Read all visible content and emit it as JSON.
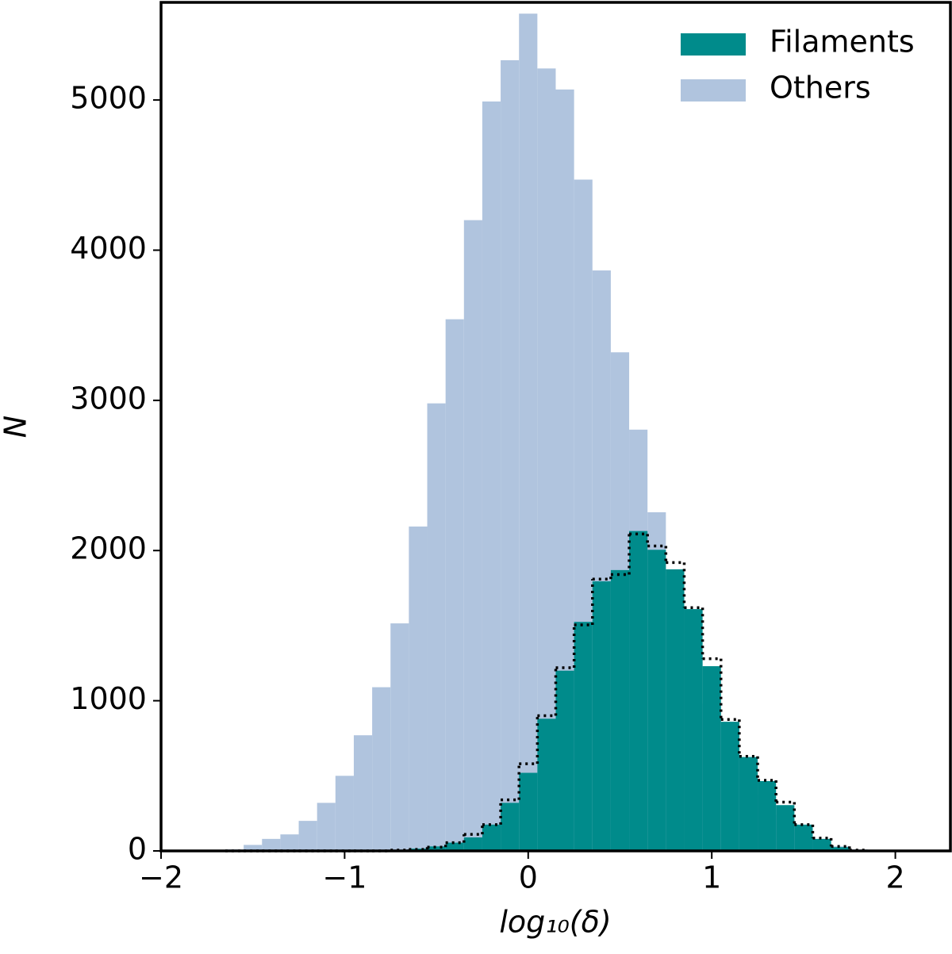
{
  "chart_data": {
    "type": "histogram",
    "xlabel": "log₁₀(δ)",
    "ylabel": "N",
    "bins": [
      -1.65,
      -1.55,
      -1.45,
      -1.35,
      -1.25,
      -1.15,
      -1.05,
      -0.95,
      -0.85,
      -0.75,
      -0.65,
      -0.55,
      -0.45,
      -0.35,
      -0.25,
      -0.15,
      -0.05,
      0.05,
      0.15,
      0.25,
      0.35,
      0.45,
      0.55,
      0.65,
      0.75,
      0.85,
      0.95,
      1.05,
      1.15,
      1.25,
      1.35,
      1.45,
      1.55,
      1.65,
      1.75,
      1.85
    ],
    "series": [
      {
        "name": "Others",
        "color": "#b0c4de",
        "style": "bar",
        "values": [
          10,
          40,
          80,
          110,
          200,
          320,
          500,
          770,
          1090,
          1515,
          2160,
          2980,
          3540,
          4200,
          4990,
          5265,
          5575,
          5210,
          5070,
          4470,
          3865,
          3320,
          2805,
          2255,
          1830,
          1335,
          980,
          850,
          520,
          375,
          240,
          125,
          55,
          30,
          10
        ]
      },
      {
        "name": "Filaments",
        "color": "#008b8b",
        "style": "bar",
        "values": [
          0,
          0,
          0,
          0,
          0,
          0,
          0,
          0,
          0,
          5,
          15,
          30,
          55,
          90,
          175,
          320,
          520,
          880,
          1200,
          1525,
          1795,
          1870,
          2130,
          2005,
          1875,
          1610,
          1230,
          860,
          625,
          465,
          305,
          175,
          80,
          25,
          5
        ]
      },
      {
        "color": "#000000",
        "style": "dotted-step",
        "values": [
          0,
          0,
          0,
          0,
          0,
          0,
          0,
          0,
          0,
          5,
          10,
          25,
          55,
          110,
          175,
          340,
          580,
          900,
          1220,
          1505,
          1810,
          1840,
          2110,
          2030,
          1920,
          1620,
          1280,
          875,
          630,
          470,
          325,
          175,
          85,
          30,
          5
        ]
      }
    ],
    "xlim": [
      -2.0,
      2.3
    ],
    "ylim": [
      0,
      5650
    ],
    "xticks": [
      {
        "value": -2,
        "label": "−2"
      },
      {
        "value": -1,
        "label": "−1"
      },
      0,
      1,
      2
    ],
    "yticks": [
      0,
      1000,
      2000,
      3000,
      4000,
      5000
    ],
    "legend": "upper right",
    "grid": false
  }
}
